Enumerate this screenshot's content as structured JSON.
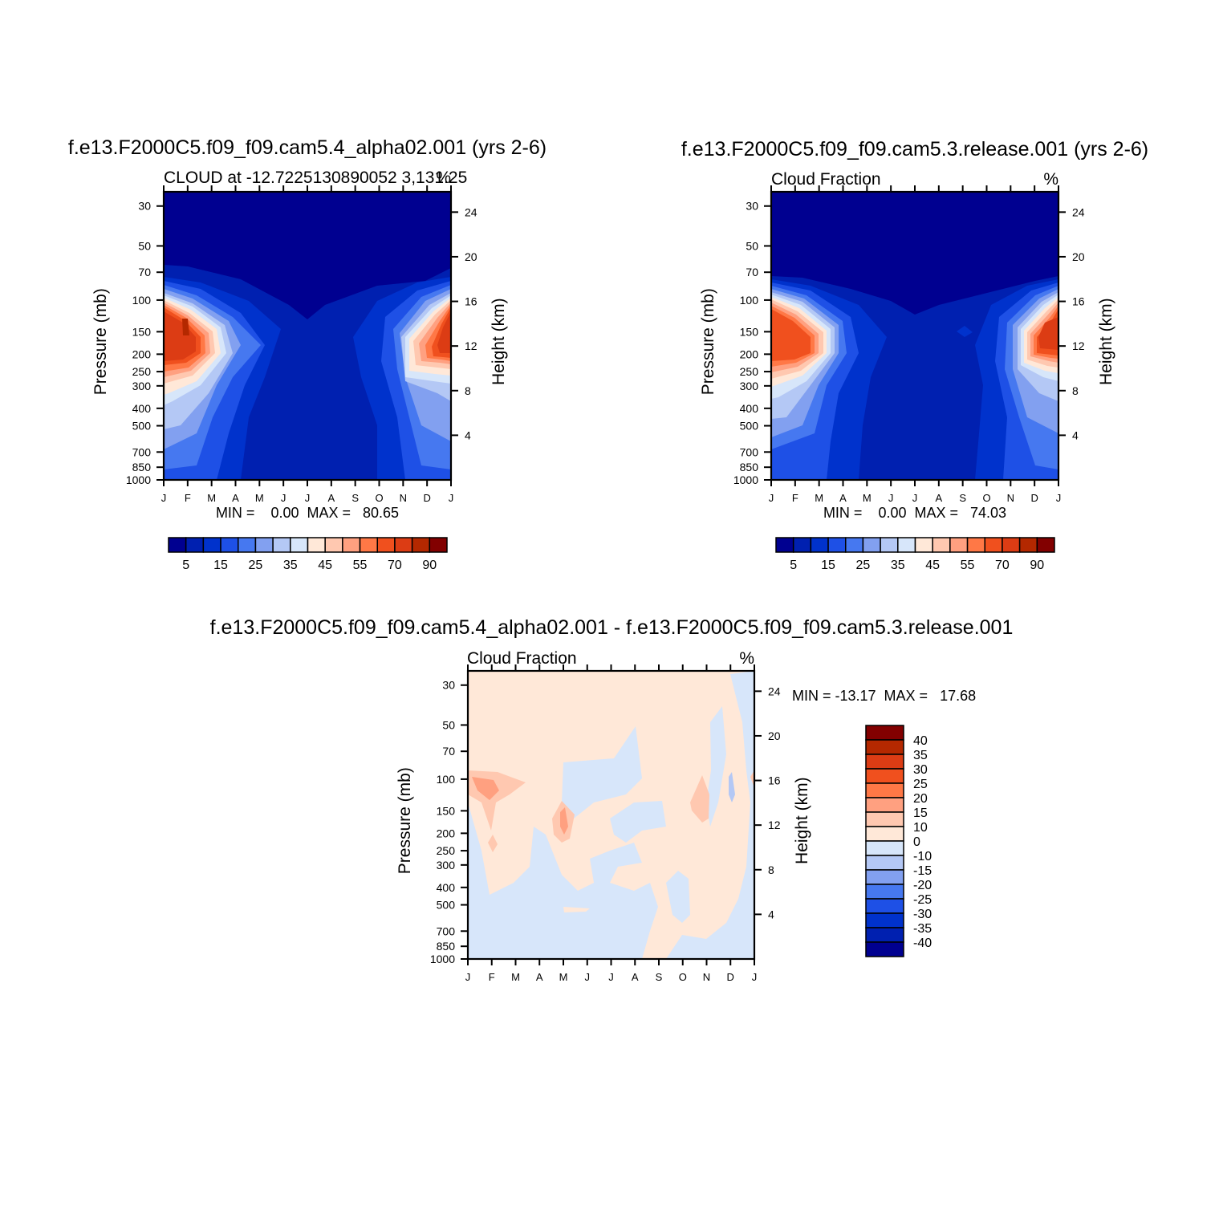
{
  "chart_data": [
    {
      "type": "heatmap",
      "title": "f.e13.F2000C5.f09_f09.cam5.4_alpha02.001 (yrs 2-6)",
      "subtitle": "CLOUD at -12.7225130890052 3,131.25",
      "units": "%",
      "ylabel": "Pressure (mb)",
      "ylabel_right": "Height (km)",
      "x_ticks": [
        "J",
        "F",
        "M",
        "A",
        "M",
        "J",
        "J",
        "A",
        "S",
        "O",
        "N",
        "D",
        "J"
      ],
      "y_ticks": [
        30,
        50,
        70,
        100,
        150,
        200,
        250,
        300,
        400,
        500,
        700,
        850,
        1000
      ],
      "ylim": [
        25,
        1000
      ],
      "y_scale": "log",
      "y_right_ticks": [
        24,
        20,
        16,
        12,
        8,
        4
      ],
      "stats": "MIN =    0.00  MAX =   80.65",
      "colorbar": {
        "colors": [
          "#000090",
          "#0020b0",
          "#0032cc",
          "#1e50e6",
          "#4678f0",
          "#82a0f0",
          "#b4c8f5",
          "#d7e6fa",
          "#ffe8d8",
          "#ffc8b0",
          "#ffa080",
          "#ff7846",
          "#f0501e",
          "#dc3c14",
          "#b42800",
          "#820000"
        ],
        "labels": [
          "5",
          "15",
          "25",
          "35",
          "45",
          "55",
          "70",
          "90"
        ]
      },
      "peak_value": 80.65
    },
    {
      "type": "heatmap",
      "title": "f.e13.F2000C5.f09_f09.cam5.3.release.001 (yrs 2-6)",
      "subtitle": "Cloud Fraction",
      "units": "%",
      "ylabel": "Pressure (mb)",
      "ylabel_right": "Height (km)",
      "x_ticks": [
        "J",
        "F",
        "M",
        "A",
        "M",
        "J",
        "J",
        "A",
        "S",
        "O",
        "N",
        "D",
        "J"
      ],
      "y_ticks": [
        30,
        50,
        70,
        100,
        150,
        200,
        250,
        300,
        400,
        500,
        700,
        850,
        1000
      ],
      "ylim": [
        25,
        1000
      ],
      "y_scale": "log",
      "y_right_ticks": [
        24,
        20,
        16,
        12,
        8,
        4
      ],
      "stats": "MIN =    0.00  MAX =   74.03",
      "colorbar": {
        "colors": [
          "#000090",
          "#0020b0",
          "#0032cc",
          "#1e50e6",
          "#4678f0",
          "#82a0f0",
          "#b4c8f5",
          "#d7e6fa",
          "#ffe8d8",
          "#ffc8b0",
          "#ffa080",
          "#ff7846",
          "#f0501e",
          "#dc3c14",
          "#b42800",
          "#820000"
        ],
        "labels": [
          "5",
          "15",
          "25",
          "35",
          "45",
          "55",
          "70",
          "90"
        ]
      },
      "peak_value": 74.03
    },
    {
      "type": "heatmap",
      "title": "f.e13.F2000C5.f09_f09.cam5.4_alpha02.001 - f.e13.F2000C5.f09_f09.cam5.3.release.001",
      "subtitle": "Cloud Fraction",
      "units": "%",
      "ylabel": "Pressure (mb)",
      "ylabel_right": "Height (km)",
      "x_ticks": [
        "J",
        "F",
        "M",
        "A",
        "M",
        "J",
        "J",
        "A",
        "S",
        "O",
        "N",
        "D",
        "J"
      ],
      "y_ticks": [
        30,
        50,
        70,
        100,
        150,
        200,
        250,
        300,
        400,
        500,
        700,
        850,
        1000
      ],
      "ylim": [
        25,
        1000
      ],
      "y_scale": "log",
      "y_right_ticks": [
        24,
        20,
        16,
        12,
        8,
        4
      ],
      "stats": "MIN = -13.17  MAX =   17.68",
      "colorbar": {
        "colors": [
          "#000090",
          "#0020b0",
          "#0032cc",
          "#1e50e6",
          "#4678f0",
          "#82a0f0",
          "#b4c8f5",
          "#d7e6fa",
          "#ffe8d8",
          "#ffc8b0",
          "#ffa080",
          "#ff7846",
          "#f0501e",
          "#dc3c14",
          "#b42800",
          "#820000"
        ],
        "labels": [
          "40",
          "35",
          "30",
          "25",
          "20",
          "15",
          "10",
          "0",
          "-10",
          "-15",
          "-20",
          "-25",
          "-30",
          "-35",
          "-40"
        ]
      }
    }
  ]
}
